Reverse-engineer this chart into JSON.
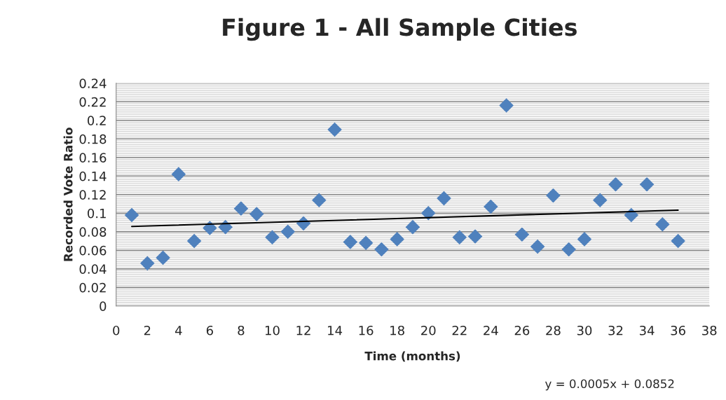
{
  "chart_data": {
    "type": "scatter",
    "title": "Figure 1 - All Sample Cities",
    "xlabel": "Time (months)",
    "ylabel": "Recorded Vote Ratio",
    "x": [
      1,
      2,
      3,
      4,
      5,
      6,
      7,
      8,
      9,
      10,
      11,
      12,
      13,
      14,
      15,
      16,
      17,
      18,
      19,
      20,
      21,
      22,
      23,
      24,
      25,
      26,
      27,
      28,
      29,
      30,
      31,
      32,
      33,
      34,
      35,
      36
    ],
    "series": [
      {
        "color": "#4f81bd",
        "marker": "diamond",
        "values": [
          0.098,
          0.046,
          0.052,
          0.142,
          0.07,
          0.084,
          0.085,
          0.105,
          0.099,
          0.074,
          0.08,
          0.089,
          0.114,
          0.19,
          0.069,
          0.068,
          0.061,
          0.072,
          0.085,
          0.1,
          0.116,
          0.074,
          0.075,
          0.107,
          0.216,
          0.077,
          0.064,
          0.119,
          0.061,
          0.072,
          0.114,
          0.131,
          0.098,
          0.131,
          0.088,
          0.07
        ]
      },
      {
        "type": "line",
        "color": "#000000",
        "x": [
          1,
          36
        ],
        "values": [
          0.0857,
          0.1032
        ]
      }
    ],
    "xlim": [
      0,
      38
    ],
    "xticks": [
      0,
      2,
      4,
      6,
      8,
      10,
      12,
      14,
      16,
      18,
      20,
      22,
      24,
      26,
      28,
      30,
      32,
      34,
      36,
      38
    ],
    "ylim": [
      0,
      0.24
    ],
    "yticks": [
      0,
      0.02,
      0.04,
      0.06,
      0.08,
      0.1,
      0.12,
      0.14,
      0.16,
      0.18,
      0.2,
      0.22,
      0.24
    ],
    "grid": "y",
    "legend": false,
    "annotations": [
      "y = 0.0005x + 0.0852"
    ]
  }
}
